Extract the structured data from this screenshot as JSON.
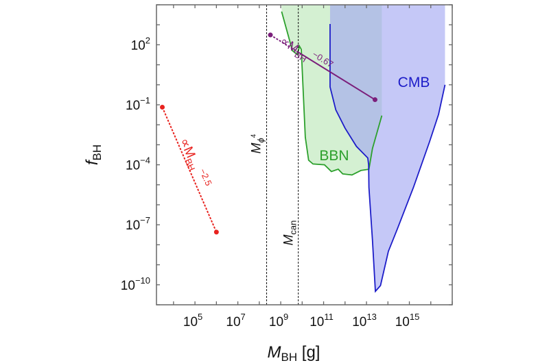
{
  "chart_data": {
    "type": "line",
    "title": "",
    "xlabel": {
      "main": "M",
      "sub": "BH",
      "unit": " [g]"
    },
    "ylabel": {
      "main": "f",
      "sub": "BH"
    },
    "xscale": "log",
    "yscale": "log",
    "xlim": [
      1600.0,
      1e+17
    ],
    "ylim": [
      1e-11,
      10000.0
    ],
    "grid": false,
    "x_ticks": [
      {
        "value": 100000.0,
        "base": "10",
        "exp": "5"
      },
      {
        "value": 10000000.0,
        "base": "10",
        "exp": "7"
      },
      {
        "value": 1000000000.0,
        "base": "10",
        "exp": "9"
      },
      {
        "value": 100000000000.0,
        "base": "10",
        "exp": "11"
      },
      {
        "value": 10000000000000.0,
        "base": "10",
        "exp": "13"
      },
      {
        "value": 1000000000000000.0,
        "base": "10",
        "exp": "15"
      }
    ],
    "y_ticks": [
      {
        "value": 100.0,
        "base": "10",
        "exp": "2"
      },
      {
        "value": 0.1,
        "base": "10",
        "exp": "−1"
      },
      {
        "value": 0.0001,
        "base": "10",
        "exp": "−4"
      },
      {
        "value": 1e-07,
        "base": "10",
        "exp": "−7"
      },
      {
        "value": 1e-10,
        "base": "10",
        "exp": "−10"
      }
    ],
    "vertical_lines": [
      {
        "name": "M_phi4",
        "x": 220000000.0,
        "label_main": "M",
        "label_sub": "ϕ",
        "label_sup": "4"
      },
      {
        "name": "M_can",
        "x": 6600000000.0,
        "label_main": "M",
        "label_sub": "can",
        "label_sup": ""
      }
    ],
    "regions": [
      {
        "name": "BBN",
        "label": "BBN",
        "color": "#2ca02c",
        "fill": "#b8e6b4",
        "boundary": [
          [
            1100000000.0,
            4600.0
          ],
          [
            1900000000.0,
            550
          ],
          [
            3500000000.0,
            51
          ],
          [
            6200000000.0,
            31
          ],
          [
            7400000000.0,
            87
          ],
          [
            9100000000.0,
            59
          ],
          [
            14000000000.0,
            0.0024
          ],
          [
            20000000000.0,
            0.00017
          ],
          [
            32000000000.0,
            0.00011
          ],
          [
            110000000000.0,
            0.0001
          ],
          [
            230000000000.0,
            4.6e-05
          ],
          [
            480000000000.0,
            6e-05
          ],
          [
            780000000000.0,
            3.5e-05
          ],
          [
            2100000000000.0,
            3.1e-05
          ],
          [
            5500000000000.0,
            5.2e-05
          ],
          [
            13000000000000.0,
            6e-05
          ],
          [
            19000000000000.0,
            0.00065
          ],
          [
            31000000000000.0,
            0.0041
          ],
          [
            52000000000000.0,
            0.029
          ]
        ]
      },
      {
        "name": "CMB",
        "label": "CMB",
        "color": "#1c1cc8",
        "fill": "#9fa4f2",
        "boundary": [
          [
            200000000000.0,
            1100.0
          ],
          [
            200000000000.0,
            0.78
          ],
          [
            370000000000.0,
            0.056
          ],
          [
            1000000000000.0,
            0.0068
          ],
          [
            3400000000000.0,
            0.00083
          ],
          [
            11500000000000.0,
            0.00022
          ],
          [
            12600000000000.0,
            0.0001
          ],
          [
            13000000000000.0,
            7.4e-06
          ],
          [
            19000000000000.0,
            1.7e-08
          ],
          [
            26000000000000.0,
            4.7e-11
          ],
          [
            45000000000000.0,
            9.1e-11
          ],
          [
            105000000000000.0,
            4.7e-09
          ],
          [
            280000000000000.0,
            6.5e-08
          ],
          [
            1550000000000000.0,
            7.4e-06
          ],
          [
            8700000000000000.0,
            0.0014
          ],
          [
            2.3e+16,
            0.033
          ],
          [
            4.6e+16,
            1.0
          ]
        ]
      }
    ],
    "series": [
      {
        "color": "#e8231f",
        "style": "dotted",
        "points": [
          [
            3000.0,
            0.076
          ],
          [
            1000000.0,
            4.3e-08
          ]
        ],
        "label_prefix": "∝M",
        "label_sub": "BH",
        "label_sup": "−2.5"
      },
      {
        "color": "#7b1f7b",
        "style": "dashed-then-solid",
        "dash_until": 6600000000.0,
        "points": [
          [
            330000000.0,
            310
          ],
          [
            25000000000000.0,
            0.18
          ]
        ],
        "label_prefix": "∝M",
        "label_sub": "BH",
        "label_sup": "−0.67"
      }
    ]
  }
}
